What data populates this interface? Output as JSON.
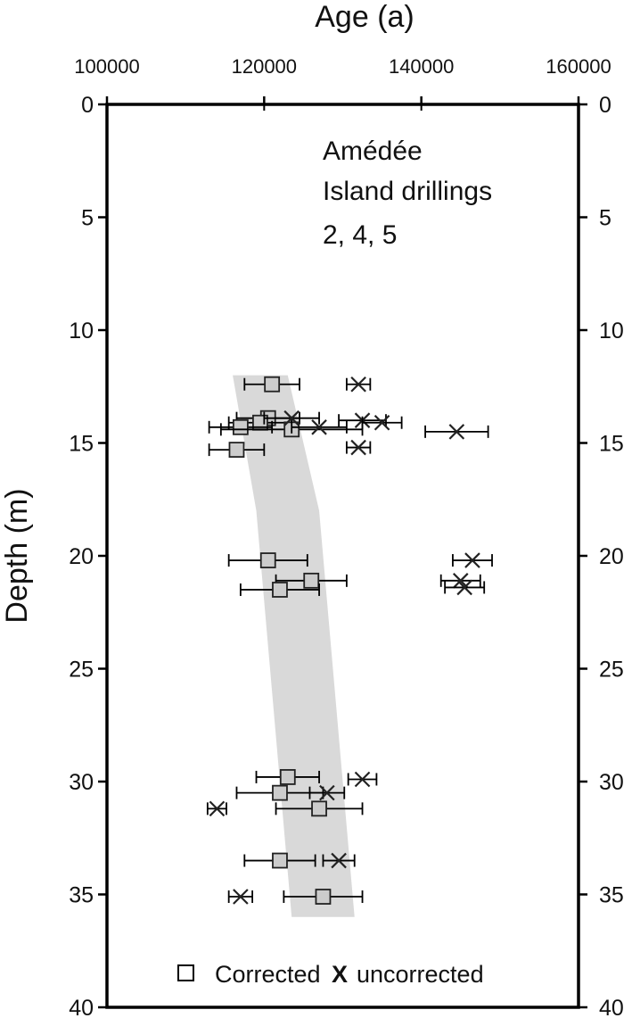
{
  "chart_data": {
    "type": "scatter",
    "title": "",
    "xlabel": "Age (a)",
    "ylabel": "Depth (m)",
    "xlim": [
      100000,
      160000
    ],
    "ylim": [
      0,
      40
    ],
    "y_reversed": true,
    "x_axis_position": "top",
    "y_axis_mirrored": "right",
    "grid": false,
    "x_ticks": [
      100000,
      120000,
      140000,
      160000
    ],
    "x_tick_labels": [
      "100000",
      "120000",
      "140000",
      "160000"
    ],
    "y_ticks": [
      0,
      5,
      10,
      15,
      20,
      25,
      30,
      35,
      40
    ],
    "y_tick_labels": [
      "0",
      "5",
      "10",
      "15",
      "20",
      "25",
      "30",
      "35",
      "40"
    ],
    "annotation": [
      "Amédée",
      "Island drillings",
      "2, 4, 5"
    ],
    "legend": {
      "position": "bottom",
      "corrected_label": "Corrected",
      "uncorrected_symbol": "X",
      "uncorrected_label": "uncorrected"
    },
    "band": {
      "color": "#d9d9d9",
      "left_edge": [
        {
          "depth": 12,
          "age": 116000
        },
        {
          "depth": 18,
          "age": 119000
        },
        {
          "depth": 36,
          "age": 123500
        }
      ],
      "right_edge": [
        {
          "depth": 12,
          "age": 123000
        },
        {
          "depth": 18,
          "age": 127000
        },
        {
          "depth": 36,
          "age": 131500
        }
      ]
    },
    "series": [
      {
        "name": "Corrected",
        "marker": "square",
        "color": "#cccccc",
        "points": [
          {
            "age": 121000,
            "depth": 12.4,
            "err": 3500
          },
          {
            "age": 120500,
            "depth": 13.9,
            "err": 4000
          },
          {
            "age": 119500,
            "depth": 14.1,
            "err": 4000
          },
          {
            "age": 117000,
            "depth": 14.3,
            "err": 4000
          },
          {
            "age": 123500,
            "depth": 14.4,
            "err": 9000
          },
          {
            "age": 116500,
            "depth": 15.3,
            "err": 3500
          },
          {
            "age": 120500,
            "depth": 20.2,
            "err": 5000
          },
          {
            "age": 126000,
            "depth": 21.1,
            "err": 4500
          },
          {
            "age": 122000,
            "depth": 21.5,
            "err": 5000
          },
          {
            "age": 123000,
            "depth": 29.8,
            "err": 4000
          },
          {
            "age": 122000,
            "depth": 30.5,
            "err": 5500
          },
          {
            "age": 127000,
            "depth": 31.2,
            "err": 5500
          },
          {
            "age": 122000,
            "depth": 33.5,
            "err": 4500
          },
          {
            "age": 127500,
            "depth": 35.1,
            "err": 5000
          }
        ]
      },
      {
        "name": "uncorrected",
        "marker": "x",
        "color": "#222222",
        "points": [
          {
            "age": 132000,
            "depth": 12.4,
            "err": 1500
          },
          {
            "age": 123500,
            "depth": 13.9,
            "err": 3500
          },
          {
            "age": 132500,
            "depth": 14.0,
            "err": 3000
          },
          {
            "age": 135000,
            "depth": 14.1,
            "err": 2500
          },
          {
            "age": 127000,
            "depth": 14.3,
            "err": 3500
          },
          {
            "age": 144500,
            "depth": 14.5,
            "err": 4000
          },
          {
            "age": 132000,
            "depth": 15.2,
            "err": 1500
          },
          {
            "age": 146500,
            "depth": 20.2,
            "err": 2500
          },
          {
            "age": 145000,
            "depth": 21.1,
            "err": 2500
          },
          {
            "age": 145500,
            "depth": 21.4,
            "err": 2500
          },
          {
            "age": 132500,
            "depth": 29.9,
            "err": 1800
          },
          {
            "age": 128000,
            "depth": 30.5,
            "err": 2200
          },
          {
            "age": 114000,
            "depth": 31.2,
            "err": 1200
          },
          {
            "age": 129500,
            "depth": 33.5,
            "err": 2000
          },
          {
            "age": 117000,
            "depth": 35.1,
            "err": 1500
          }
        ]
      }
    ]
  }
}
